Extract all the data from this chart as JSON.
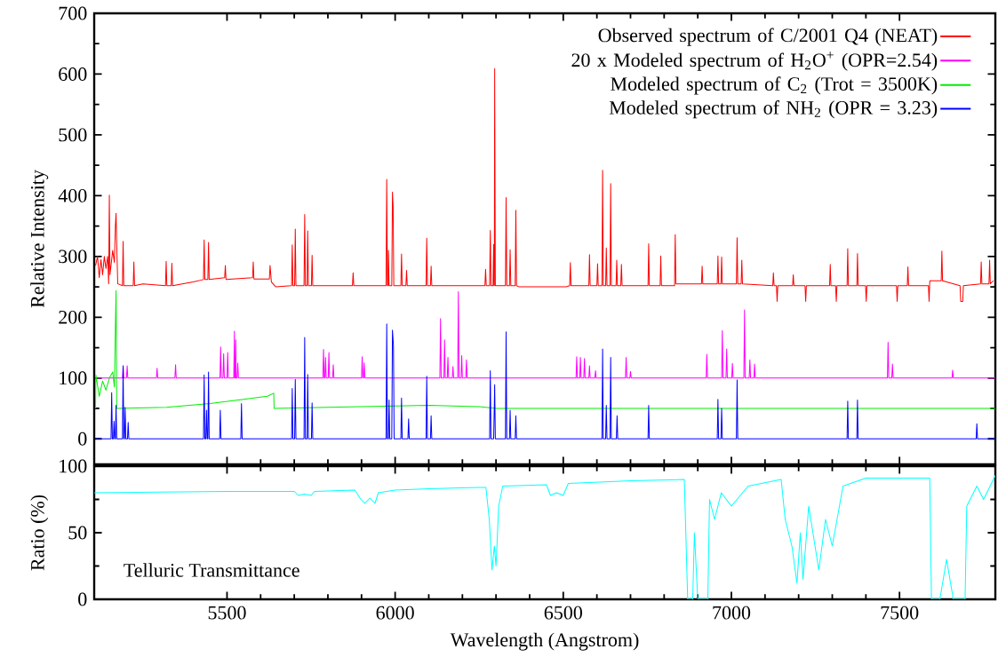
{
  "chart_data": [
    {
      "type": "line",
      "ylabel": "Relative Intensity",
      "xlim": [
        5105,
        7785
      ],
      "ylim": [
        -42,
        700
      ],
      "xticks": [
        5500,
        6000,
        6500,
        7000,
        7500
      ],
      "yticks": [
        0,
        100,
        200,
        300,
        400,
        500,
        600,
        700
      ],
      "tick_labels": "y",
      "legend": "top right",
      "grid": false,
      "marker": "none",
      "series": [
        {
          "name": "Observed spectrum of C/2001 Q4 (NEAT)",
          "color": "#ff0000",
          "x": [
            5109,
            5115,
            5120,
            5125,
            5130,
            5135,
            5140,
            5145,
            5148,
            5150,
            5152,
            5160,
            5165,
            5168,
            5170,
            5172,
            5175,
            5189,
            5191,
            5193,
            5221,
            5223,
            5225,
            5250,
            5317,
            5319,
            5321,
            5334,
            5336,
            5338,
            5400,
            5430,
            5432,
            5434,
            5443,
            5445,
            5447,
            5493,
            5495,
            5497,
            5576,
            5578,
            5580,
            5626,
            5628,
            5632,
            5645,
            5692,
            5694,
            5696,
            5701,
            5703,
            5705,
            5729,
            5731,
            5733,
            5738,
            5740,
            5742,
            5751,
            5753,
            5755,
            5873,
            5875,
            5877,
            5973,
            5975,
            5977,
            5979,
            5980,
            5982,
            5990,
            5992,
            5994,
            5996,
            6017,
            6019,
            6021,
            6032,
            6034,
            6036,
            6092,
            6094,
            6096,
            6105,
            6107,
            6109,
            6267,
            6269,
            6271,
            6281,
            6283,
            6285,
            6291,
            6293,
            6294,
            6295,
            6296,
            6298,
            6328,
            6330,
            6332,
            6340,
            6342,
            6344,
            6357,
            6359,
            6361,
            6369,
            6509,
            6519,
            6521,
            6523,
            6576,
            6578,
            6580,
            6600,
            6602,
            6604,
            6615,
            6617,
            6619,
            6626,
            6628,
            6630,
            6639,
            6641,
            6643,
            6657,
            6659,
            6661,
            6671,
            6673,
            6675,
            6752,
            6754,
            6756,
            6788,
            6790,
            6792,
            6831,
            6833,
            6835,
            6911,
            6913,
            6915,
            6958,
            6960,
            6962,
            6969,
            6971,
            6973,
            7015,
            7017,
            7019,
            7029,
            7031,
            7033,
            7123,
            7125,
            7127,
            7134,
            7136,
            7138,
            7182,
            7184,
            7186,
            7219,
            7221,
            7223,
            7292,
            7294,
            7296,
            7310,
            7312,
            7314,
            7344,
            7346,
            7348,
            7373,
            7375,
            7377,
            7399,
            7401,
            7403,
            7491,
            7493,
            7495,
            7523,
            7525,
            7527,
            7586,
            7588,
            7590,
            7624,
            7626,
            7628,
            7680,
            7682,
            7688,
            7690,
            7741,
            7743,
            7745,
            7766,
            7768,
            7770,
            7779
          ],
          "values": [
            285,
            300,
            265,
            295,
            270,
            300,
            280,
            300,
            255,
            401,
            270,
            310,
            290,
            350,
            371,
            320,
            255,
            252,
            325,
            252,
            252,
            291,
            252,
            255,
            252,
            292,
            252,
            252,
            289,
            252,
            258,
            262,
            327,
            262,
            262,
            323,
            262,
            265,
            285,
            262,
            265,
            291,
            263,
            263,
            285,
            258,
            250,
            252,
            319,
            252,
            252,
            345,
            252,
            252,
            369,
            252,
            252,
            342,
            252,
            252,
            302,
            252,
            252,
            273,
            252,
            252,
            427,
            252,
            252,
            310,
            252,
            252,
            406,
            382,
            252,
            252,
            304,
            252,
            252,
            277,
            252,
            252,
            330,
            252,
            252,
            284,
            252,
            252,
            279,
            252,
            252,
            343,
            252,
            252,
            320,
            252,
            252,
            609,
            252,
            252,
            397,
            252,
            252,
            311,
            252,
            252,
            376,
            252,
            250,
            250,
            252,
            290,
            252,
            252,
            303,
            252,
            252,
            288,
            252,
            252,
            442,
            252,
            252,
            314,
            252,
            252,
            420,
            252,
            252,
            294,
            252,
            252,
            287,
            252,
            252,
            321,
            252,
            252,
            301,
            252,
            252,
            336,
            255,
            255,
            284,
            255,
            255,
            301,
            255,
            255,
            299,
            255,
            255,
            331,
            255,
            255,
            294,
            255,
            252,
            273,
            252,
            252,
            226,
            252,
            252,
            270,
            252,
            252,
            226,
            252,
            252,
            287,
            252,
            252,
            226,
            252,
            252,
            313,
            252,
            252,
            305,
            252,
            252,
            226,
            252,
            252,
            226,
            252,
            252,
            283,
            252,
            252,
            226,
            260,
            260,
            309,
            260,
            252,
            226,
            226,
            252,
            255,
            291,
            255,
            255,
            294,
            255,
            260
          ]
        },
        {
          "name": "20 x Modeled spectrum of H$_{2}$O$^{+}$ (OPR=2.54)",
          "color": "#ff00ff",
          "x": [
            5109,
            5189,
            5191,
            5193,
            5201,
            5203,
            5205,
            5290,
            5292,
            5294,
            5345,
            5347,
            5349,
            5479,
            5481,
            5483,
            5488,
            5490,
            5492,
            5500,
            5502,
            5504,
            5520,
            5522,
            5523,
            5525,
            5526,
            5527,
            5530,
            5532,
            5534,
            5785,
            5787,
            5789,
            5791,
            5793,
            5795,
            5801,
            5803,
            5805,
            5814,
            5816,
            5818,
            5900,
            5902,
            5904,
            5906,
            5908,
            5910,
            6133,
            6135,
            6137,
            6145,
            6147,
            6149,
            6155,
            6157,
            6159,
            6170,
            6172,
            6174,
            6186,
            6188,
            6190,
            6196,
            6198,
            6200,
            6210,
            6212,
            6214,
            6538,
            6540,
            6542,
            6549,
            6551,
            6553,
            6561,
            6563,
            6565,
            6576,
            6578,
            6580,
            6594,
            6596,
            6598,
            6685,
            6687,
            6689,
            6698,
            6700,
            6702,
            6925,
            6927,
            6929,
            6971,
            6973,
            6975,
            6984,
            6986,
            6988,
            7001,
            7003,
            7005,
            7037,
            7039,
            7041,
            7053,
            7055,
            7057,
            7067,
            7069,
            7071,
            7464,
            7466,
            7468,
            7477,
            7479,
            7481,
            7656,
            7658,
            7660,
            7785
          ],
          "values": [
            100,
            100,
            120,
            100,
            100,
            120,
            100,
            100,
            116,
            100,
            100,
            122,
            100,
            100,
            151,
            100,
            100,
            140,
            100,
            100,
            142,
            100,
            100,
            177,
            100,
            100,
            163,
            100,
            100,
            125,
            100,
            100,
            147,
            100,
            100,
            134,
            100,
            100,
            142,
            100,
            100,
            122,
            100,
            100,
            135,
            100,
            100,
            125,
            100,
            100,
            198,
            100,
            100,
            163,
            100,
            100,
            134,
            100,
            100,
            119,
            100,
            100,
            242,
            100,
            100,
            137,
            100,
            100,
            130,
            100,
            100,
            135,
            100,
            100,
            134,
            100,
            100,
            132,
            100,
            100,
            120,
            100,
            100,
            112,
            100,
            100,
            134,
            100,
            100,
            111,
            100,
            100,
            139,
            100,
            100,
            178,
            100,
            100,
            148,
            100,
            100,
            124,
            100,
            100,
            212,
            100,
            100,
            130,
            100,
            100,
            123,
            100,
            100,
            159,
            100,
            100,
            123,
            100,
            100,
            113,
            100,
            100
          ]
        },
        {
          "name": "Modeled spectrum of C$_{2}$ (Trot = 3500K)",
          "color": "#00ee00",
          "x": [
            5109,
            5110,
            5120,
            5130,
            5140,
            5150,
            5160,
            5165,
            5168,
            5170,
            5172,
            5320,
            5450,
            5550,
            5620,
            5639,
            5640,
            5900,
            6100,
            6250,
            6300,
            7785
          ],
          "values": [
            50,
            105,
            70,
            95,
            80,
            100,
            110,
            85,
            183,
            244,
            50,
            52,
            58,
            65,
            70,
            75,
            50,
            53,
            55,
            53,
            50,
            50
          ]
        },
        {
          "name": "Modeled spectrum of NH$_{2}$ (OPR = 3.23)",
          "color": "#0000ff",
          "x": [
            5109,
            5155,
            5157,
            5159,
            5162,
            5164,
            5166,
            5168,
            5170,
            5172,
            5189,
            5191,
            5193,
            5195,
            5197,
            5199,
            5204,
            5206,
            5208,
            5430,
            5432,
            5434,
            5437,
            5439,
            5441,
            5443,
            5445,
            5447,
            5478,
            5480,
            5482,
            5541,
            5543,
            5545,
            5692,
            5694,
            5696,
            5701,
            5703,
            5705,
            5729,
            5731,
            5733,
            5738,
            5740,
            5742,
            5751,
            5753,
            5755,
            5973,
            5975,
            5977,
            5980,
            5982,
            5984,
            5990,
            5992,
            5995,
            5997,
            6017,
            6019,
            6021,
            6038,
            6040,
            6042,
            6092,
            6094,
            6096,
            6105,
            6107,
            6109,
            6281,
            6283,
            6285,
            6293,
            6295,
            6296,
            6298,
            6328,
            6330,
            6332,
            6340,
            6342,
            6344,
            6357,
            6359,
            6361,
            6615,
            6617,
            6619,
            6626,
            6628,
            6630,
            6639,
            6641,
            6643,
            6658,
            6660,
            6662,
            6752,
            6754,
            6756,
            6958,
            6960,
            6962,
            6969,
            6971,
            6973,
            7015,
            7017,
            7019,
            7344,
            7346,
            7348,
            7373,
            7375,
            7377,
            7728,
            7730,
            7732,
            7785
          ],
          "values": [
            0,
            0,
            76,
            0,
            0,
            29,
            0,
            0,
            55,
            0,
            0,
            120,
            0,
            0,
            52,
            0,
            0,
            27,
            0,
            0,
            105,
            0,
            0,
            47,
            0,
            0,
            110,
            0,
            0,
            47,
            0,
            0,
            58,
            0,
            0,
            83,
            0,
            0,
            98,
            0,
            0,
            167,
            0,
            0,
            106,
            0,
            0,
            59,
            0,
            0,
            189,
            0,
            0,
            64,
            0,
            0,
            179,
            153,
            0,
            0,
            67,
            0,
            0,
            33,
            0,
            0,
            103,
            0,
            0,
            38,
            0,
            0,
            112,
            0,
            0,
            56,
            89,
            0,
            0,
            176,
            0,
            0,
            47,
            0,
            0,
            38,
            0,
            0,
            148,
            0,
            0,
            55,
            0,
            0,
            134,
            0,
            0,
            38,
            0,
            0,
            55,
            0,
            0,
            65,
            0,
            0,
            50,
            0,
            0,
            97,
            0,
            0,
            62,
            0,
            0,
            64,
            0,
            0,
            25,
            0,
            0
          ]
        }
      ]
    },
    {
      "type": "line",
      "xlabel": "Wavelength (Angstrom)",
      "ylabel": "Ratio (%)",
      "xlim": [
        5105,
        7785
      ],
      "ylim": [
        0,
        100
      ],
      "xticks": [
        5500,
        6000,
        6500,
        7000,
        7500
      ],
      "yticks": [
        0,
        50,
        100
      ],
      "legend": false,
      "grid": false,
      "marker": "none",
      "series": [
        {
          "name": "Telluric Transmittance",
          "color": "#00ffff",
          "x": [
            5105,
            5300,
            5500,
            5700,
            5712,
            5730,
            5750,
            5760,
            5880,
            5898,
            5910,
            5925,
            5940,
            5950,
            6000,
            6100,
            6250,
            6270,
            6280,
            6288,
            6295,
            6300,
            6308,
            6320,
            6450,
            6462,
            6480,
            6500,
            6515,
            6700,
            6860,
            6870,
            6885,
            6890,
            6900,
            6920,
            6930,
            6935,
            6950,
            6970,
            7000,
            7050,
            7148,
            7160,
            7180,
            7195,
            7205,
            7213,
            7230,
            7260,
            7280,
            7300,
            7332,
            7400,
            7590,
            7595,
            7620,
            7640,
            7660,
            7695,
            7700,
            7730,
            7750,
            7785
          ],
          "values": [
            80,
            80.5,
            81,
            81,
            78,
            79,
            78,
            81,
            82,
            75,
            72,
            76,
            72,
            80,
            82,
            83,
            84,
            84,
            60,
            22,
            40,
            25,
            70,
            85,
            86,
            78,
            80,
            78,
            87,
            89,
            90,
            0,
            0,
            50,
            0,
            0,
            0,
            75,
            60,
            80,
            70,
            85,
            90,
            60,
            40,
            12,
            50,
            15,
            70,
            22,
            60,
            40,
            85,
            91,
            91,
            0,
            0,
            30,
            0,
            0,
            70,
            85,
            75,
            93
          ]
        }
      ]
    }
  ]
}
